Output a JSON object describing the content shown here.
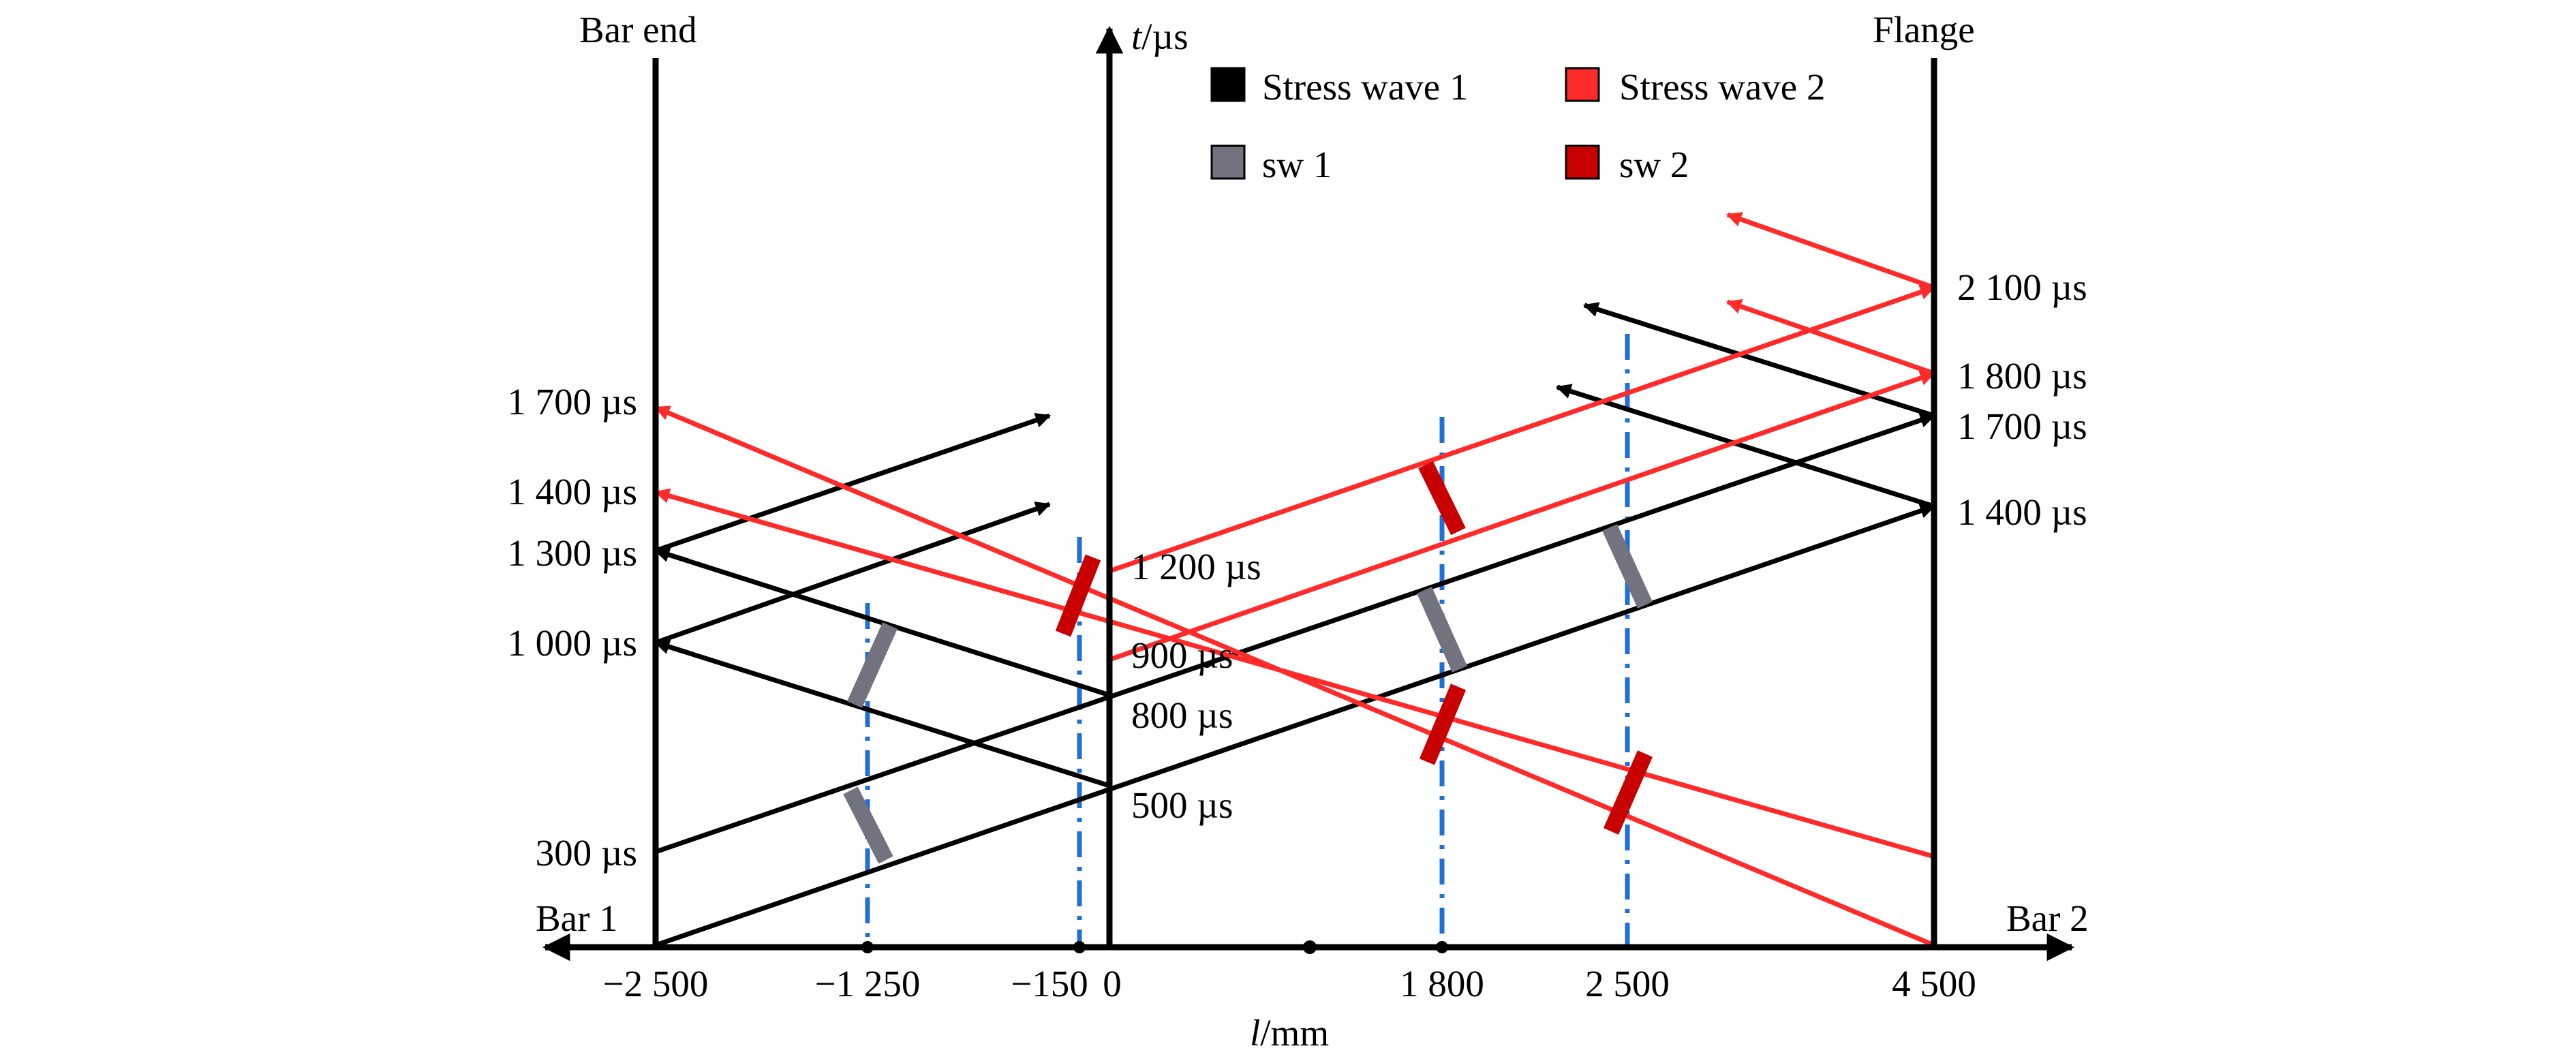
{
  "labels": {
    "bar_end": "Bar end",
    "flange": "Flange",
    "bar1": "Bar 1",
    "bar2": "Bar 2",
    "t_axis": "t",
    "t_unit": "/µs",
    "l_axis": "l",
    "l_unit": "/mm"
  },
  "legend": [
    {
      "key": "stress_wave_1",
      "label": "Stress wave 1",
      "color": "#000000"
    },
    {
      "key": "stress_wave_2",
      "label": "Stress wave 2",
      "color": "#ff2a2a"
    },
    {
      "key": "sw_1",
      "label": "sw 1",
      "color": "#737380"
    },
    {
      "key": "sw_2",
      "label": "sw 2",
      "color": "#c80000"
    }
  ],
  "x_ticks": [
    "−2 500",
    "−1 250",
    "−150",
    "0",
    "1 800",
    "2 500",
    "4 500"
  ],
  "time_labels": {
    "left": [
      "1 700 µs",
      "1 400 µs",
      "1 300 µs",
      "1 000 µs",
      "300 µs"
    ],
    "center": [
      "1 200 µs",
      "900 µs",
      "800 µs",
      "500 µs"
    ],
    "right": [
      "2 100 µs",
      "1 800 µs",
      "1 700 µs",
      "1 400 µs"
    ]
  },
  "colors": {
    "axis": "#000000",
    "stress_wave_1": "#000000",
    "stress_wave_2": "#ff2a2a",
    "sw_1": "#737380",
    "sw_2": "#c80000",
    "gauge_line": "#1f6fd8"
  }
}
